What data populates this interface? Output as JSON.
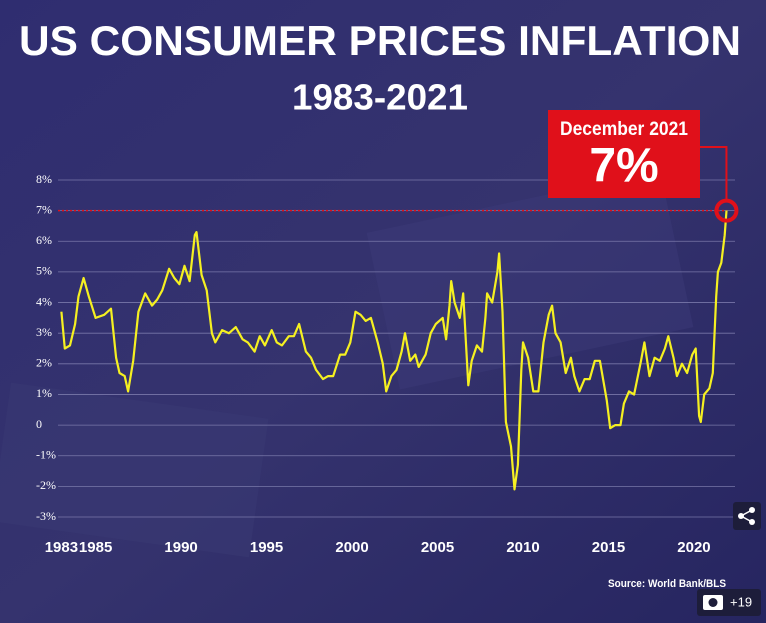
{
  "chart_data": {
    "type": "line",
    "title": "US CONSUMER PRICES INFLATION",
    "subtitle": "1983-2021",
    "source": "Source: World Bank/BLS",
    "color": "#f5f021",
    "grid": true,
    "xlim": [
      1982.8,
      2022.4
    ],
    "ylim": [
      -3,
      8
    ],
    "xticks": [
      1983,
      1985,
      1990,
      1995,
      2000,
      2005,
      2010,
      2015,
      2020
    ],
    "yticks": [
      {
        "value": 8,
        "label": "8%"
      },
      {
        "value": 7,
        "label": "7%"
      },
      {
        "value": 6,
        "label": "6%"
      },
      {
        "value": 5,
        "label": "5%"
      },
      {
        "value": 4,
        "label": "4%"
      },
      {
        "value": 3,
        "label": "3%"
      },
      {
        "value": 2,
        "label": "2%"
      },
      {
        "value": 1,
        "label": "1%"
      },
      0,
      {
        "value": -1,
        "label": "-1%"
      },
      {
        "value": -2,
        "label": "-2%"
      },
      {
        "value": -3,
        "label": "-3%"
      }
    ],
    "x": [
      1983.0,
      1983.2,
      1983.5,
      1983.8,
      1984.0,
      1984.3,
      1984.6,
      1985.0,
      1985.5,
      1985.9,
      1986.2,
      1986.4,
      1986.7,
      1986.9,
      1987.2,
      1987.5,
      1987.9,
      1988.3,
      1988.6,
      1988.9,
      1989.3,
      1989.6,
      1989.9,
      1990.2,
      1990.5,
      1990.8,
      1990.9,
      1991.2,
      1991.5,
      1991.8,
      1992.0,
      1992.4,
      1992.8,
      1993.2,
      1993.6,
      1993.9,
      1994.3,
      1994.6,
      1994.9,
      1995.3,
      1995.6,
      1995.9,
      1996.3,
      1996.6,
      1996.9,
      1997.3,
      1997.6,
      1997.9,
      1998.3,
      1998.6,
      1998.9,
      1999.3,
      1999.6,
      1999.9,
      2000.2,
      2000.5,
      2000.8,
      2001.1,
      2001.5,
      2001.8,
      2002.0,
      2002.3,
      2002.6,
      2002.9,
      2003.1,
      2003.4,
      2003.7,
      2003.9,
      2004.3,
      2004.6,
      2004.9,
      2005.3,
      2005.5,
      2005.7,
      2005.8,
      2006.0,
      2006.3,
      2006.5,
      2006.8,
      2007.0,
      2007.3,
      2007.6,
      2007.8,
      2007.9,
      2008.2,
      2008.5,
      2008.6,
      2008.8,
      2009.0,
      2009.3,
      2009.5,
      2009.7,
      2009.9,
      2010.0,
      2010.3,
      2010.6,
      2010.9,
      2011.2,
      2011.5,
      2011.7,
      2011.9,
      2012.2,
      2012.5,
      2012.8,
      2013.0,
      2013.3,
      2013.6,
      2013.9,
      2014.2,
      2014.5,
      2014.9,
      2015.1,
      2015.4,
      2015.7,
      2015.9,
      2016.2,
      2016.5,
      2016.9,
      2017.1,
      2017.4,
      2017.7,
      2018.0,
      2018.3,
      2018.5,
      2018.8,
      2019.0,
      2019.3,
      2019.6,
      2019.9,
      2020.1,
      2020.3,
      2020.4,
      2020.6,
      2020.9,
      2021.1,
      2021.3,
      2021.4,
      2021.6,
      2021.8,
      2021.9
    ],
    "values": [
      3.7,
      2.5,
      2.6,
      3.3,
      4.2,
      4.8,
      4.2,
      3.5,
      3.6,
      3.8,
      2.2,
      1.7,
      1.6,
      1.1,
      2.1,
      3.7,
      4.3,
      3.9,
      4.1,
      4.4,
      5.1,
      4.8,
      4.6,
      5.2,
      4.7,
      6.2,
      6.3,
      4.9,
      4.4,
      3.0,
      2.7,
      3.1,
      3.0,
      3.2,
      2.8,
      2.7,
      2.4,
      2.9,
      2.6,
      3.1,
      2.7,
      2.6,
      2.9,
      2.9,
      3.3,
      2.4,
      2.2,
      1.8,
      1.5,
      1.6,
      1.6,
      2.3,
      2.3,
      2.7,
      3.7,
      3.6,
      3.4,
      3.5,
      2.7,
      2.0,
      1.1,
      1.6,
      1.8,
      2.4,
      3.0,
      2.1,
      2.3,
      1.9,
      2.3,
      3.0,
      3.3,
      3.5,
      2.8,
      3.9,
      4.7,
      4.0,
      3.5,
      4.3,
      1.3,
      2.1,
      2.6,
      2.4,
      3.5,
      4.3,
      4.0,
      5.0,
      5.6,
      3.7,
      0.1,
      -0.7,
      -2.1,
      -1.3,
      1.8,
      2.7,
      2.2,
      1.1,
      1.1,
      2.7,
      3.6,
      3.9,
      3.0,
      2.7,
      1.7,
      2.2,
      1.6,
      1.1,
      1.5,
      1.5,
      2.1,
      2.1,
      0.8,
      -0.1,
      0.0,
      0.0,
      0.7,
      1.1,
      1.0,
      2.1,
      2.7,
      1.6,
      2.2,
      2.1,
      2.5,
      2.9,
      2.2,
      1.6,
      2.0,
      1.7,
      2.3,
      2.5,
      0.3,
      0.1,
      1.0,
      1.2,
      1.7,
      4.2,
      5.0,
      5.3,
      6.2,
      7.0
    ],
    "annotation": {
      "label": "December 2021",
      "x": 2021.9,
      "value": 7,
      "value_label": "7%"
    },
    "photo_count": "+19"
  }
}
